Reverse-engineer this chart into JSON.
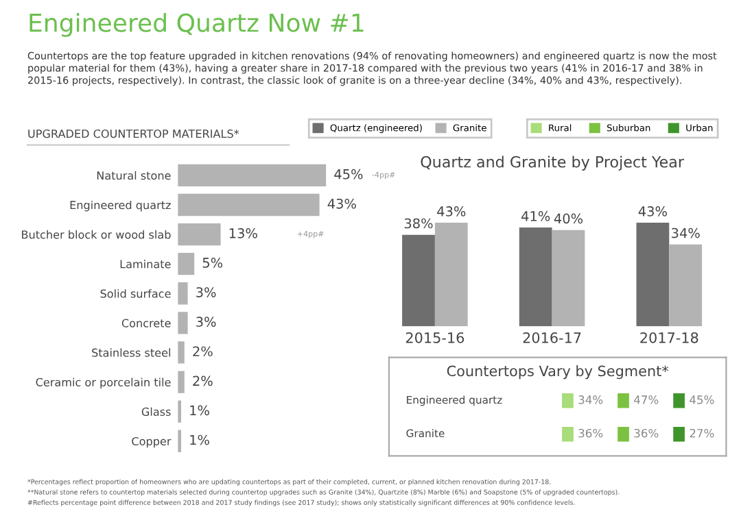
{
  "chart_data": [
    {
      "type": "other",
      "title": "Engineered Quartz Now #1",
      "subtitle": "Countertops are the top feature upgraded in kitchen renovations (94% of renovating homeowners) and engineered quartz is now the most popular material for them (43%), having a greater share in 2017-18 compared with the previous two years (41% in 2016-17 and 38% in 2015-16 projects, respectively). In contrast, the classic look of granite is on a three-year decline (34%, 40% and 43%, respectively).",
      "color": "#6bbf4e",
      "annotations": [
        "*Percentages reflect proportion of homeowners who are updating countertops as part of their completed, current, or planned kitchen renovation during 2017-18.",
        "**Natural stone refers to countertop materials selected during countertop upgrades such as Granite (34%), Quartzite (8%) Marble (6%) and Soapstone (5% of upgraded countertops).",
        "#Reflects percentage point difference between 2018 and 2017 study findings (see 2017 study); shows only statistically significant differences at 90% confidence levels."
      ]
    },
    {
      "type": "bar",
      "orientation": "horizontal",
      "title": "UPGRADED COUNTERTOP MATERIALS*",
      "categories": [
        "Natural stone",
        "Engineered quartz",
        "Butcher block or wood slab",
        "Laminate",
        "Solid surface",
        "Concrete",
        "Stainless steel",
        "Ceramic or porcelain tile",
        "Glass",
        "Copper"
      ],
      "values": [
        45,
        43,
        13,
        5,
        3,
        3,
        2,
        2,
        1,
        1
      ],
      "color": "#b3b3b3",
      "value_labels": [
        "45%",
        "43%",
        "13%",
        "5%",
        "3%",
        "3%",
        "2%",
        "2%",
        "1%",
        "1%"
      ],
      "annotations": [
        "-4pp#",
        "+4pp#"
      ],
      "grid": false,
      "tick_labels": "y"
    },
    {
      "type": "bar",
      "title": "Quartz and Granite by Project Year",
      "categories": [
        "2015-16",
        "2016-17",
        "2017-18"
      ],
      "series": [
        {
          "name": "Quartz (engineered)",
          "color": "#6e6e6e",
          "values": [
            38,
            41,
            43
          ],
          "value_labels": [
            "38%",
            "41%",
            "43%"
          ]
        },
        {
          "name": "Granite",
          "color": "#b3b3b3",
          "values": [
            43,
            40,
            34
          ],
          "value_labels": [
            "43%",
            "40%",
            "34%"
          ]
        }
      ],
      "legend": "top",
      "grid": false,
      "tick_labels": "x"
    },
    {
      "type": "other",
      "title": "Countertops Vary by Segment*",
      "categories": [
        "Engineered quartz",
        "Granite"
      ],
      "series": [
        {
          "name": "Rural",
          "color": "#a9dc7a",
          "values": [
            34,
            36
          ],
          "value_labels": [
            "34%",
            "36%"
          ]
        },
        {
          "name": "Suburban",
          "color": "#7cc242",
          "values": [
            47,
            36
          ],
          "value_labels": [
            "47%",
            "36%"
          ]
        },
        {
          "name": "Urban",
          "color": "#3f952b",
          "values": [
            45,
            27
          ],
          "value_labels": [
            "45%",
            "27%"
          ]
        }
      ],
      "legend": "top"
    }
  ]
}
